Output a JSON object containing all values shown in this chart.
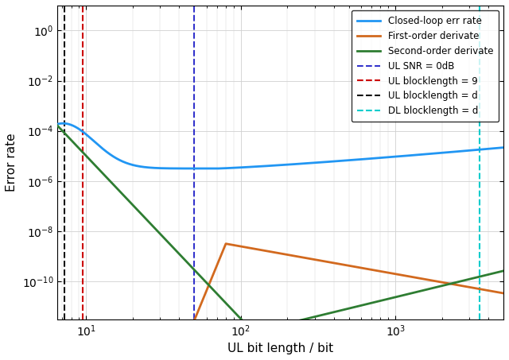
{
  "title": "",
  "xlabel": "UL bit length / bit",
  "ylabel": "Error rate",
  "xlim": [
    6.5,
    5000
  ],
  "ylim": [
    3e-12,
    10
  ],
  "lines": {
    "closed_loop": {
      "color": "#2196F3",
      "label": "Closed-loop err rate"
    },
    "first_deriv": {
      "color": "#D2691E",
      "label": "First-order derivate"
    },
    "second_deriv": {
      "color": "#2E7D32",
      "label": "Second-order derivate"
    }
  },
  "vlines": {
    "ul_snr_0db": {
      "x": 50,
      "color": "#3333CC",
      "label": "UL SNR = 0dB"
    },
    "ul_block_9": {
      "x": 9.5,
      "color": "#CC0000",
      "label": "UL blocklength = 9"
    },
    "ul_block_d": {
      "x": 7.2,
      "color": "#111111",
      "label": "UL blocklength = d"
    },
    "dl_block_d": {
      "x": 3500,
      "color": "#00CCCC",
      "label": "DL blocklength = d"
    }
  },
  "background_color": "#ffffff",
  "grid_color": "#d0d0d0"
}
